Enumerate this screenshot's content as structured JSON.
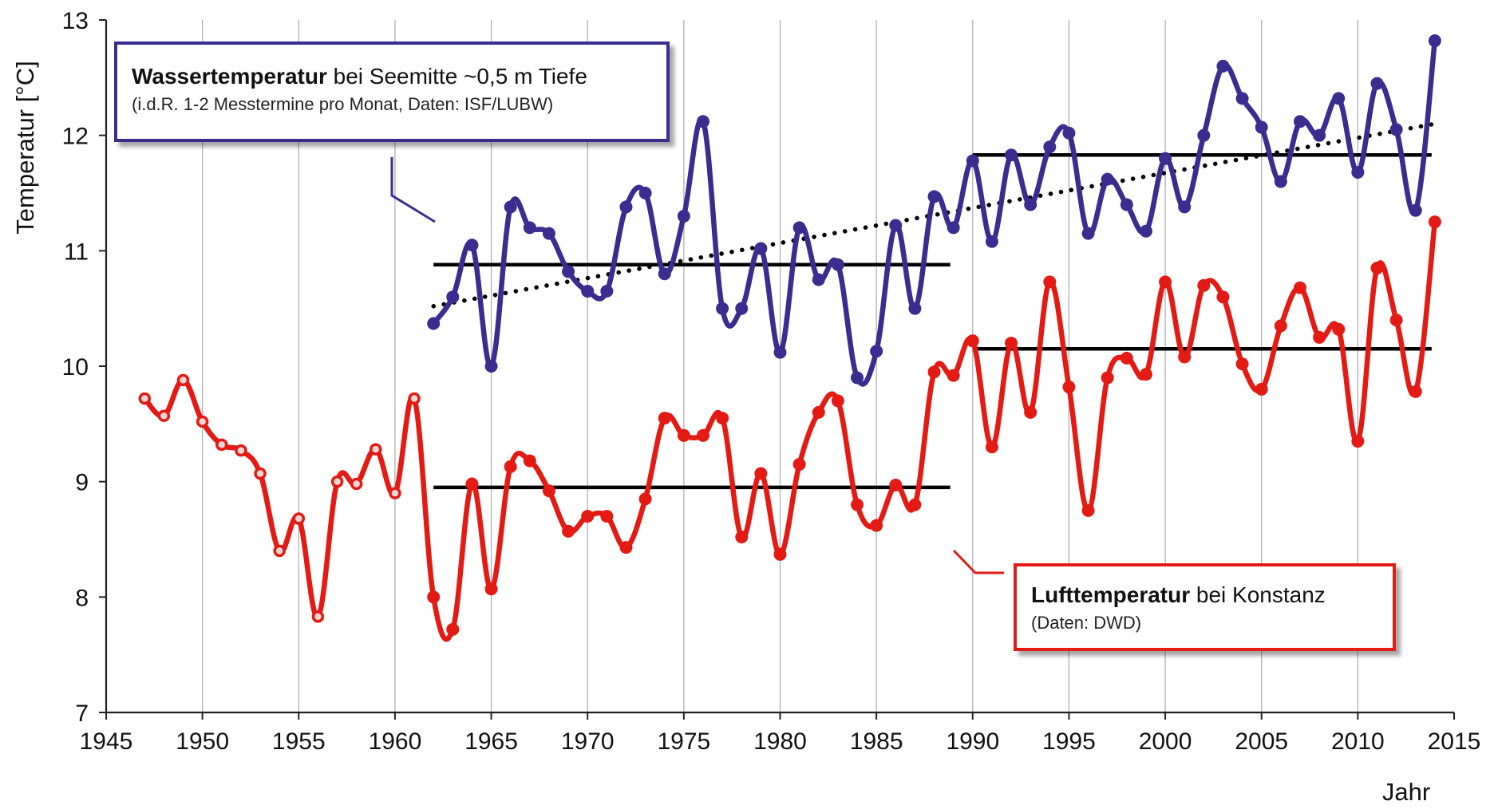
{
  "chart_data": {
    "type": "line",
    "title": "",
    "xlabel": "Jahr",
    "ylabel": "Temperatur [°C]",
    "xlim": [
      1945,
      2015
    ],
    "ylim": [
      7,
      13
    ],
    "xticks": [
      "1945",
      "1950",
      "1955",
      "1960",
      "1965",
      "1970",
      "1975",
      "1980",
      "1985",
      "1990",
      "1995",
      "2000",
      "2005",
      "2010",
      "2015"
    ],
    "yticks": [
      "7",
      "8",
      "9",
      "10",
      "11",
      "12",
      "13"
    ],
    "grid": "vertical",
    "series": [
      {
        "id": "water",
        "color": "#3b2d8f",
        "x": [
          1962,
          1963,
          1964,
          1965,
          1966,
          1967,
          1968,
          1969,
          1970,
          1971,
          1972,
          1973,
          1974,
          1975,
          1976,
          1977,
          1978,
          1979,
          1980,
          1981,
          1982,
          1983,
          1984,
          1985,
          1986,
          1987,
          1988,
          1989,
          1990,
          1991,
          1992,
          1993,
          1994,
          1995,
          1996,
          1997,
          1998,
          1999,
          2000,
          2001,
          2002,
          2003,
          2004,
          2005,
          2006,
          2007,
          2008,
          2009,
          2010,
          2011,
          2012,
          2013,
          2014
        ],
        "values": [
          10.37,
          10.6,
          11.05,
          10.0,
          11.38,
          11.2,
          11.15,
          10.82,
          10.65,
          10.65,
          11.38,
          11.5,
          10.8,
          11.3,
          12.12,
          10.5,
          10.5,
          11.02,
          10.12,
          11.2,
          10.75,
          10.88,
          9.9,
          10.13,
          11.22,
          10.5,
          11.47,
          11.2,
          11.78,
          11.08,
          11.83,
          11.4,
          11.9,
          12.02,
          11.15,
          11.62,
          11.4,
          11.17,
          11.8,
          11.38,
          12.0,
          12.6,
          12.32,
          12.07,
          11.6,
          12.12,
          12.0,
          12.32,
          11.68,
          12.45,
          12.05,
          11.35,
          12.82
        ]
      },
      {
        "id": "air",
        "color": "#e31b14",
        "x": [
          1947,
          1948,
          1949,
          1950,
          1951,
          1952,
          1953,
          1954,
          1955,
          1956,
          1957,
          1958,
          1959,
          1960,
          1961,
          1962,
          1963,
          1964,
          1965,
          1966,
          1967,
          1968,
          1969,
          1970,
          1971,
          1972,
          1973,
          1974,
          1975,
          1976,
          1977,
          1978,
          1979,
          1980,
          1981,
          1982,
          1983,
          1984,
          1985,
          1986,
          1987,
          1988,
          1989,
          1990,
          1991,
          1992,
          1993,
          1994,
          1995,
          1996,
          1997,
          1998,
          1999,
          2000,
          2001,
          2002,
          2003,
          2004,
          2005,
          2006,
          2007,
          2008,
          2009,
          2010,
          2011,
          2012,
          2013,
          2014
        ],
        "values": [
          9.72,
          9.57,
          9.88,
          9.52,
          9.32,
          9.27,
          9.07,
          8.4,
          8.68,
          7.83,
          9.0,
          8.98,
          9.28,
          8.9,
          9.72,
          8.0,
          7.72,
          8.98,
          8.07,
          9.13,
          9.18,
          8.92,
          8.57,
          8.7,
          8.7,
          8.43,
          8.85,
          9.55,
          9.4,
          9.4,
          9.55,
          8.52,
          9.07,
          8.37,
          9.15,
          9.6,
          9.7,
          8.8,
          8.62,
          8.97,
          8.8,
          9.95,
          9.92,
          10.22,
          9.3,
          10.2,
          9.6,
          10.73,
          9.82,
          8.75,
          9.9,
          10.07,
          9.93,
          10.73,
          10.08,
          10.7,
          10.6,
          10.02,
          9.8,
          10.35,
          10.68,
          10.25,
          10.32,
          9.35,
          10.85,
          10.4,
          9.78,
          11.25
        ]
      }
    ],
    "water_hollow_from": 9999,
    "air_hollow_until": 1961,
    "means": [
      {
        "series": "water",
        "x": [
          1962,
          1989
        ],
        "value": 10.88
      },
      {
        "series": "water",
        "x": [
          1990,
          2014
        ],
        "value": 11.83
      },
      {
        "series": "air",
        "x": [
          1962,
          1989
        ],
        "value": 8.95
      },
      {
        "series": "air",
        "x": [
          1990,
          2014
        ],
        "value": 10.15
      }
    ],
    "trend": {
      "series": "water",
      "x": [
        1962,
        2014
      ],
      "y": [
        10.52,
        12.1
      ]
    }
  },
  "legend": {
    "water": {
      "bold": "Wassertemperatur",
      "rest": " bei Seemitte ~0,5 m Tiefe",
      "note": "(i.d.R. 1-2 Messtermine pro Monat, Daten: ISF/LUBW)"
    },
    "air": {
      "bold": "Lufttemperatur",
      "rest": " bei Konstanz",
      "note": "(Daten: DWD)"
    }
  }
}
